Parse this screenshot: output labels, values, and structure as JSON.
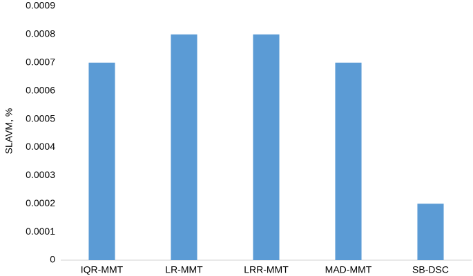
{
  "chart_data": {
    "type": "bar",
    "ylabel": "SLAVM, %",
    "categories": [
      "IQR-MMT",
      "LR-MMT",
      "LRR-MMT",
      "MAD-MMT",
      "SB-DSC"
    ],
    "values": [
      0.0007,
      0.0008,
      0.0008,
      0.0007,
      0.0002
    ],
    "color": "#5b9bd5",
    "ylim": [
      0,
      0.0009
    ],
    "yticks": [
      0,
      0.0001,
      0.0002,
      0.0003,
      0.0004,
      0.0005,
      0.0006,
      0.0007,
      0.0008,
      0.0009
    ],
    "grid": false
  }
}
